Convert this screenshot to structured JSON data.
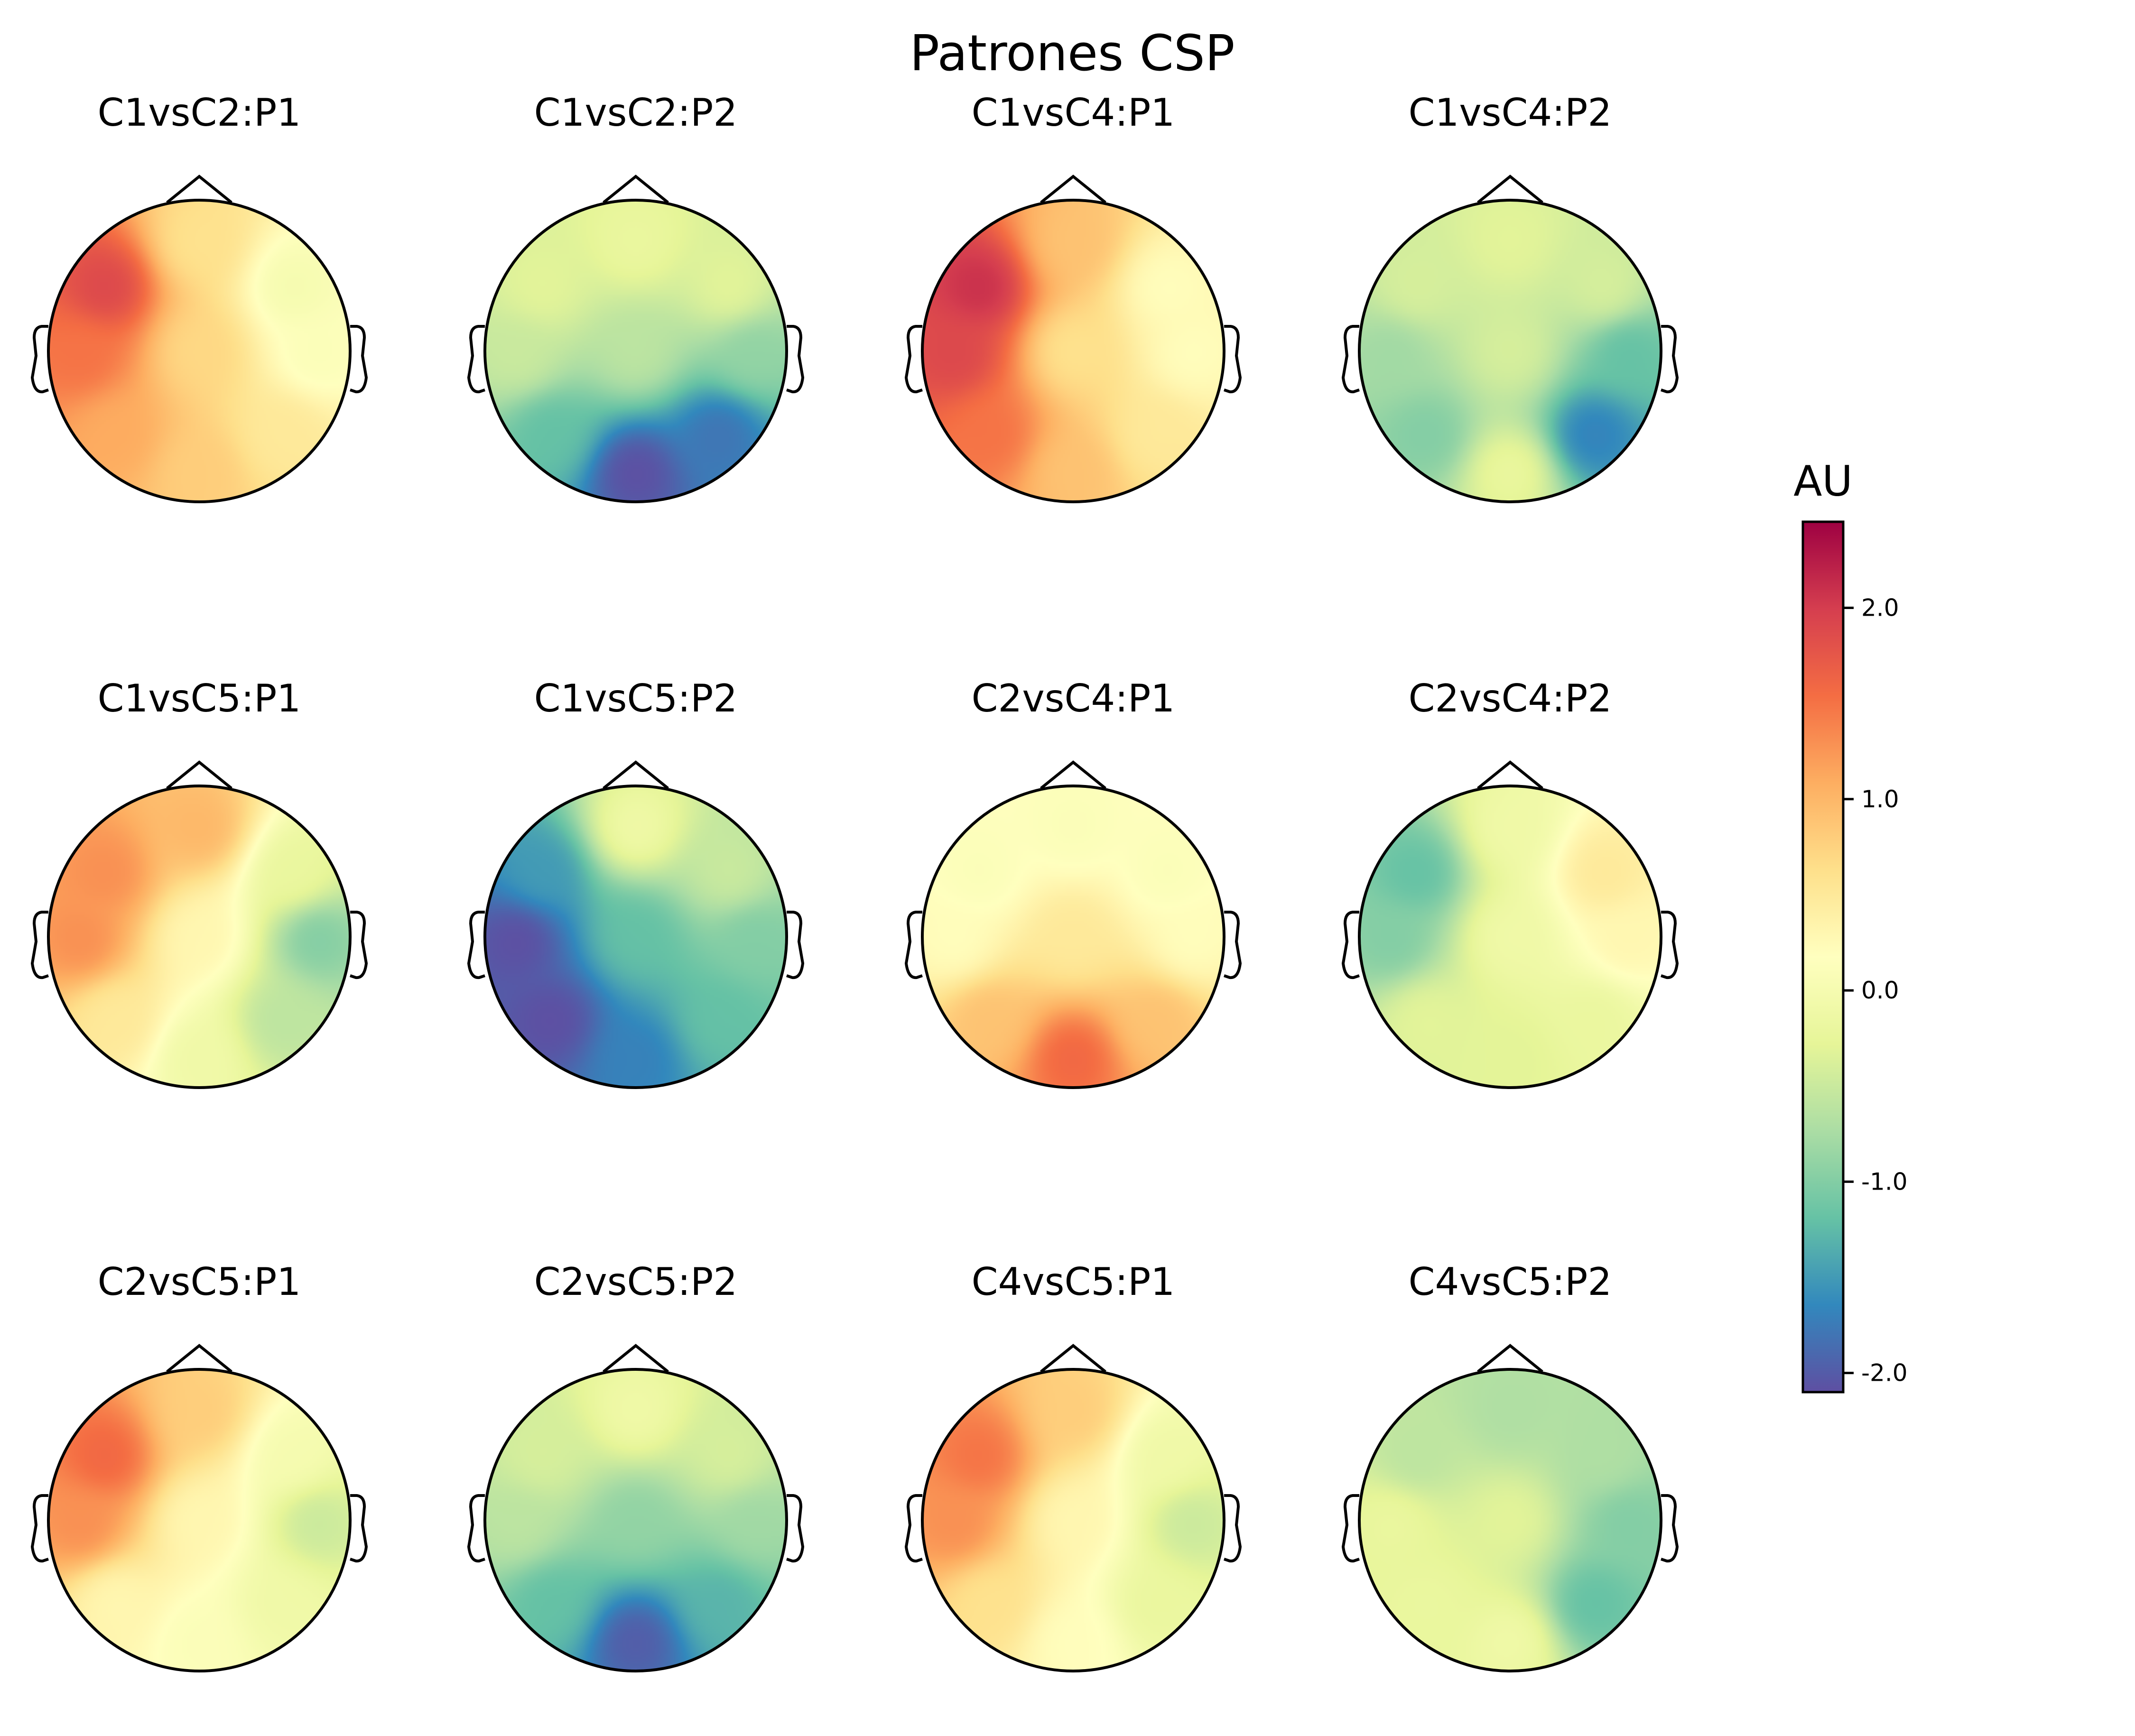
{
  "chart_data": {
    "type": "heatmap",
    "subtype": "eeg-topomap-grid",
    "title": "Patrones CSP",
    "colormap": "Spectral_r",
    "colorbar": {
      "label": "AU",
      "range": [
        -2.1,
        2.45
      ],
      "ticks": [
        2.0,
        1.0,
        0.0,
        -1.0,
        -2.0
      ],
      "tick_labels": [
        "2.0",
        "1.0",
        "0.0",
        "-1.0",
        "-2.0"
      ],
      "colors_low_to_high": [
        "#5e4fa2",
        "#3288bd",
        "#66c2a5",
        "#abdda4",
        "#e6f598",
        "#ffffbf",
        "#fee08b",
        "#fdae61",
        "#f46d43",
        "#d53e4f",
        "#9e0142"
      ]
    },
    "grid": {
      "rows": 3,
      "cols": 4
    },
    "note_sources": "Each panel approximated by value at a few scalp positions (front, front-left, front-right, left, center, right, back-left, back-right, back).",
    "panels": [
      {
        "title": "C1vsC2:P1",
        "sources": [
          {
            "pos": "left-front",
            "value": 1.9
          },
          {
            "pos": "front",
            "value": 0.6
          },
          {
            "pos": "right-front",
            "value": 0.0
          },
          {
            "pos": "right",
            "value": 0.1
          },
          {
            "pos": "center",
            "value": 0.7
          },
          {
            "pos": "back",
            "value": 0.8
          },
          {
            "pos": "left-back",
            "value": 1.1
          },
          {
            "pos": "right-back",
            "value": 0.5
          },
          {
            "pos": "left",
            "value": 1.5
          }
        ]
      },
      {
        "title": "C1vsC2:P2",
        "sources": [
          {
            "pos": "front",
            "value": -0.2
          },
          {
            "pos": "left",
            "value": -0.5
          },
          {
            "pos": "right",
            "value": -0.9
          },
          {
            "pos": "center",
            "value": -0.6
          },
          {
            "pos": "back",
            "value": -2.1
          },
          {
            "pos": "right-back",
            "value": -1.8
          },
          {
            "pos": "left-back",
            "value": -1.2
          },
          {
            "pos": "left-front",
            "value": -0.3
          },
          {
            "pos": "right-front",
            "value": -0.3
          }
        ]
      },
      {
        "title": "C1vsC4:P1",
        "sources": [
          {
            "pos": "left-front",
            "value": 2.1
          },
          {
            "pos": "front",
            "value": 0.9
          },
          {
            "pos": "right-front",
            "value": 0.2
          },
          {
            "pos": "right",
            "value": 0.2
          },
          {
            "pos": "center",
            "value": 0.6
          },
          {
            "pos": "back",
            "value": 0.9
          },
          {
            "pos": "left-back",
            "value": 1.5
          },
          {
            "pos": "right-back",
            "value": 0.5
          },
          {
            "pos": "left",
            "value": 1.9
          }
        ]
      },
      {
        "title": "C1vsC4:P2",
        "sources": [
          {
            "pos": "front",
            "value": -0.3
          },
          {
            "pos": "left",
            "value": -0.8
          },
          {
            "pos": "right",
            "value": -1.2
          },
          {
            "pos": "center",
            "value": -0.4
          },
          {
            "pos": "back",
            "value": -0.2
          },
          {
            "pos": "right-back",
            "value": -1.7
          },
          {
            "pos": "left-back",
            "value": -1.0
          },
          {
            "pos": "left-front",
            "value": -0.4
          },
          {
            "pos": "right-front",
            "value": -0.4
          }
        ]
      },
      {
        "title": "C1vsC5:P1",
        "sources": [
          {
            "pos": "left-front",
            "value": 1.3
          },
          {
            "pos": "front",
            "value": 1.0
          },
          {
            "pos": "right-front",
            "value": -0.2
          },
          {
            "pos": "right",
            "value": -1.0
          },
          {
            "pos": "center",
            "value": 0.3
          },
          {
            "pos": "back",
            "value": -0.1
          },
          {
            "pos": "left-back",
            "value": 0.5
          },
          {
            "pos": "right-back",
            "value": -0.6
          },
          {
            "pos": "left",
            "value": 1.3
          }
        ]
      },
      {
        "title": "C1vsC5:P2",
        "sources": [
          {
            "pos": "front",
            "value": -0.1
          },
          {
            "pos": "left-front",
            "value": -1.5
          },
          {
            "pos": "left",
            "value": -2.1
          },
          {
            "pos": "left-back",
            "value": -2.1
          },
          {
            "pos": "center",
            "value": -1.2
          },
          {
            "pos": "back",
            "value": -1.7
          },
          {
            "pos": "right",
            "value": -1.0
          },
          {
            "pos": "right-back",
            "value": -1.2
          },
          {
            "pos": "right-front",
            "value": -0.5
          }
        ]
      },
      {
        "title": "C2vsC4:P1",
        "sources": [
          {
            "pos": "front",
            "value": 0.1
          },
          {
            "pos": "left",
            "value": 0.2
          },
          {
            "pos": "right",
            "value": 0.2
          },
          {
            "pos": "center",
            "value": 0.5
          },
          {
            "pos": "back",
            "value": 1.6
          },
          {
            "pos": "left-back",
            "value": 0.9
          },
          {
            "pos": "right-back",
            "value": 0.9
          },
          {
            "pos": "left-front",
            "value": 0.1
          },
          {
            "pos": "right-front",
            "value": 0.1
          }
        ]
      },
      {
        "title": "C2vsC4:P2",
        "sources": [
          {
            "pos": "left-front",
            "value": -1.2
          },
          {
            "pos": "left",
            "value": -1.0
          },
          {
            "pos": "front",
            "value": -0.1
          },
          {
            "pos": "right-front",
            "value": 0.5
          },
          {
            "pos": "right",
            "value": 0.3
          },
          {
            "pos": "center",
            "value": -0.1
          },
          {
            "pos": "back",
            "value": -0.3
          },
          {
            "pos": "left-back",
            "value": -0.3
          },
          {
            "pos": "right-back",
            "value": -0.2
          }
        ]
      },
      {
        "title": "C2vsC5:P1",
        "sources": [
          {
            "pos": "left-front",
            "value": 1.6
          },
          {
            "pos": "front",
            "value": 0.8
          },
          {
            "pos": "right-front",
            "value": 0.0
          },
          {
            "pos": "right",
            "value": -0.5
          },
          {
            "pos": "center",
            "value": 0.3
          },
          {
            "pos": "back",
            "value": 0.1
          },
          {
            "pos": "left-back",
            "value": 0.3
          },
          {
            "pos": "right-back",
            "value": -0.1
          },
          {
            "pos": "left",
            "value": 1.3
          }
        ]
      },
      {
        "title": "C2vsC5:P2",
        "sources": [
          {
            "pos": "front",
            "value": -0.1
          },
          {
            "pos": "left",
            "value": -0.6
          },
          {
            "pos": "right",
            "value": -0.8
          },
          {
            "pos": "center",
            "value": -0.9
          },
          {
            "pos": "back",
            "value": -2.0
          },
          {
            "pos": "left-back",
            "value": -1.2
          },
          {
            "pos": "right-back",
            "value": -1.3
          },
          {
            "pos": "left-front",
            "value": -0.4
          },
          {
            "pos": "right-front",
            "value": -0.4
          }
        ]
      },
      {
        "title": "C4vsC5:P1",
        "sources": [
          {
            "pos": "left-front",
            "value": 1.5
          },
          {
            "pos": "front",
            "value": 0.8
          },
          {
            "pos": "right-front",
            "value": -0.1
          },
          {
            "pos": "right",
            "value": -0.5
          },
          {
            "pos": "center",
            "value": 0.3
          },
          {
            "pos": "back",
            "value": 0.2
          },
          {
            "pos": "left-back",
            "value": 0.6
          },
          {
            "pos": "right-back",
            "value": -0.2
          },
          {
            "pos": "left",
            "value": 1.3
          }
        ]
      },
      {
        "title": "C4vsC5:P2",
        "sources": [
          {
            "pos": "front",
            "value": -0.7
          },
          {
            "pos": "left-front",
            "value": -0.6
          },
          {
            "pos": "left",
            "value": -0.2
          },
          {
            "pos": "center",
            "value": -0.3
          },
          {
            "pos": "back",
            "value": -0.1
          },
          {
            "pos": "right",
            "value": -1.0
          },
          {
            "pos": "right-back",
            "value": -1.2
          },
          {
            "pos": "left-back",
            "value": -0.2
          },
          {
            "pos": "right-front",
            "value": -0.7
          }
        ]
      }
    ]
  }
}
